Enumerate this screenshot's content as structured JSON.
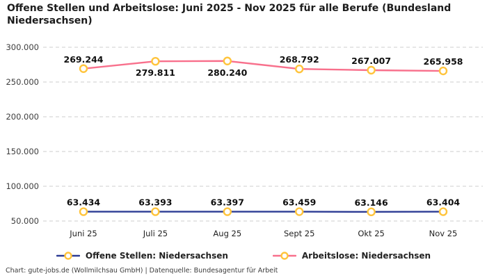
{
  "title": "Offene Stellen und Arbeitslose: Juni 2025 - Nov 2025 für alle Berufe (Bundesland Niedersachsen)",
  "footer": "Chart: gute-jobs.de (Wollmilchsau GmbH) | Datenquelle: Bundesagentur für Arbeit",
  "colors": {
    "open_positions": "#2c3b94",
    "unemployed": "#f8708c",
    "marker": "#ffc43c",
    "grid": "#cccccc"
  },
  "chart_data": {
    "type": "line",
    "x": [
      "Juni 25",
      "Juli 25",
      "Aug 25",
      "Sept 25",
      "Okt 25",
      "Nov 25"
    ],
    "ylim": [
      50000,
      300000
    ],
    "yticks": {
      "values": [
        50000,
        100000,
        150000,
        200000,
        250000,
        300000
      ],
      "labels": [
        "50.000",
        "100.000",
        "150.000",
        "200.000",
        "250.000",
        "300.000"
      ]
    },
    "grid": "dashed-horizontal",
    "legend_position": "bottom-center",
    "series": [
      {
        "key": "offene-stellen",
        "name": "Offene Stellen: Niedersachsen",
        "color_key": "open_positions",
        "values": [
          63434,
          63393,
          63397,
          63459,
          63146,
          63404
        ],
        "labels": [
          "63.434",
          "63.393",
          "63.397",
          "63.459",
          "63.146",
          "63.404"
        ],
        "label_positions": [
          "above",
          "above",
          "above",
          "above",
          "above",
          "above"
        ]
      },
      {
        "key": "arbeitslose",
        "name": "Arbeitslose: Niedersachsen",
        "color_key": "unemployed",
        "values": [
          269244,
          279811,
          280240,
          268792,
          267007,
          265958
        ],
        "labels": [
          "269.244",
          "279.811",
          "280.240",
          "268.792",
          "267.007",
          "265.958"
        ],
        "label_positions": [
          "above",
          "below",
          "below",
          "above",
          "above",
          "above"
        ]
      }
    ]
  }
}
